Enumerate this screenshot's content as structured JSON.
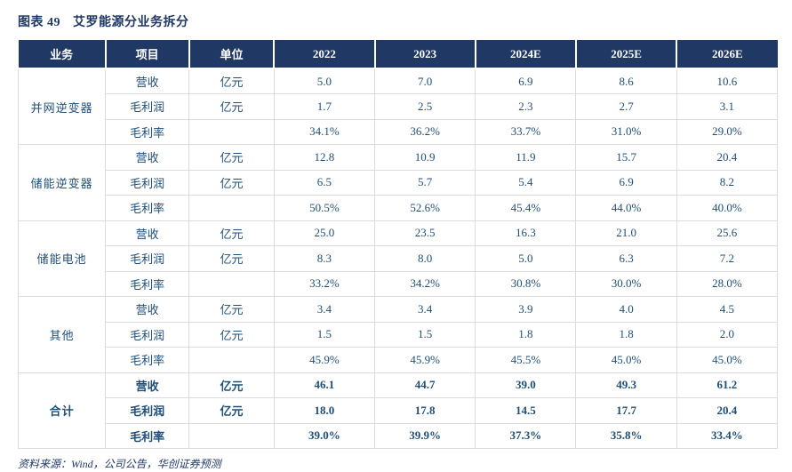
{
  "title": {
    "figure_label": "图表 49",
    "figure_title": "艾罗能源分业务拆分"
  },
  "colors": {
    "header_bg": "#1F3864",
    "header_text": "#FFFFFF",
    "body_text": "#1F4E79",
    "title_text": "#1F3864",
    "border": "#DCDCDC"
  },
  "table": {
    "headers": [
      "业务",
      "项目",
      "单位",
      "2022",
      "2023",
      "2024E",
      "2025E",
      "2026E"
    ],
    "groups": [
      {
        "business": "并网逆变器",
        "rows": [
          {
            "item": "营收",
            "unit": "亿元",
            "values": [
              "5.0",
              "7.0",
              "6.9",
              "8.6",
              "10.6"
            ]
          },
          {
            "item": "毛利润",
            "unit": "亿元",
            "values": [
              "1.7",
              "2.5",
              "2.3",
              "2.7",
              "3.1"
            ]
          },
          {
            "item": "毛利率",
            "unit": "",
            "values": [
              "34.1%",
              "36.2%",
              "33.7%",
              "31.0%",
              "29.0%"
            ]
          }
        ]
      },
      {
        "business": "储能逆变器",
        "rows": [
          {
            "item": "营收",
            "unit": "亿元",
            "values": [
              "12.8",
              "10.9",
              "11.9",
              "15.7",
              "20.4"
            ]
          },
          {
            "item": "毛利润",
            "unit": "亿元",
            "values": [
              "6.5",
              "5.7",
              "5.4",
              "6.9",
              "8.2"
            ]
          },
          {
            "item": "毛利率",
            "unit": "",
            "values": [
              "50.5%",
              "52.6%",
              "45.4%",
              "44.0%",
              "40.0%"
            ]
          }
        ]
      },
      {
        "business": "储能电池",
        "rows": [
          {
            "item": "营收",
            "unit": "亿元",
            "values": [
              "25.0",
              "23.5",
              "16.3",
              "21.0",
              "25.6"
            ]
          },
          {
            "item": "毛利润",
            "unit": "亿元",
            "values": [
              "8.3",
              "8.0",
              "5.0",
              "6.3",
              "7.2"
            ]
          },
          {
            "item": "毛利率",
            "unit": "",
            "values": [
              "33.2%",
              "34.2%",
              "30.8%",
              "30.0%",
              "28.0%"
            ]
          }
        ]
      },
      {
        "business": "其他",
        "rows": [
          {
            "item": "营收",
            "unit": "亿元",
            "values": [
              "3.4",
              "3.4",
              "3.9",
              "4.0",
              "4.5"
            ]
          },
          {
            "item": "毛利润",
            "unit": "亿元",
            "values": [
              "1.5",
              "1.5",
              "1.8",
              "1.8",
              "2.0"
            ]
          },
          {
            "item": "毛利率",
            "unit": "",
            "values": [
              "45.9%",
              "45.9%",
              "45.5%",
              "45.0%",
              "45.0%"
            ]
          }
        ]
      },
      {
        "business": "合计",
        "rows": [
          {
            "item": "营收",
            "unit": "亿元",
            "values": [
              "46.1",
              "44.7",
              "39.0",
              "49.3",
              "61.2"
            ]
          },
          {
            "item": "毛利润",
            "unit": "亿元",
            "values": [
              "18.0",
              "17.8",
              "14.5",
              "17.7",
              "20.4"
            ]
          },
          {
            "item": "毛利率",
            "unit": "",
            "values": [
              "39.0%",
              "39.9%",
              "37.3%",
              "35.8%",
              "33.4%"
            ]
          }
        ]
      }
    ]
  },
  "footer": {
    "source": "资料来源：Wind，公司公告，华创证券预测"
  }
}
